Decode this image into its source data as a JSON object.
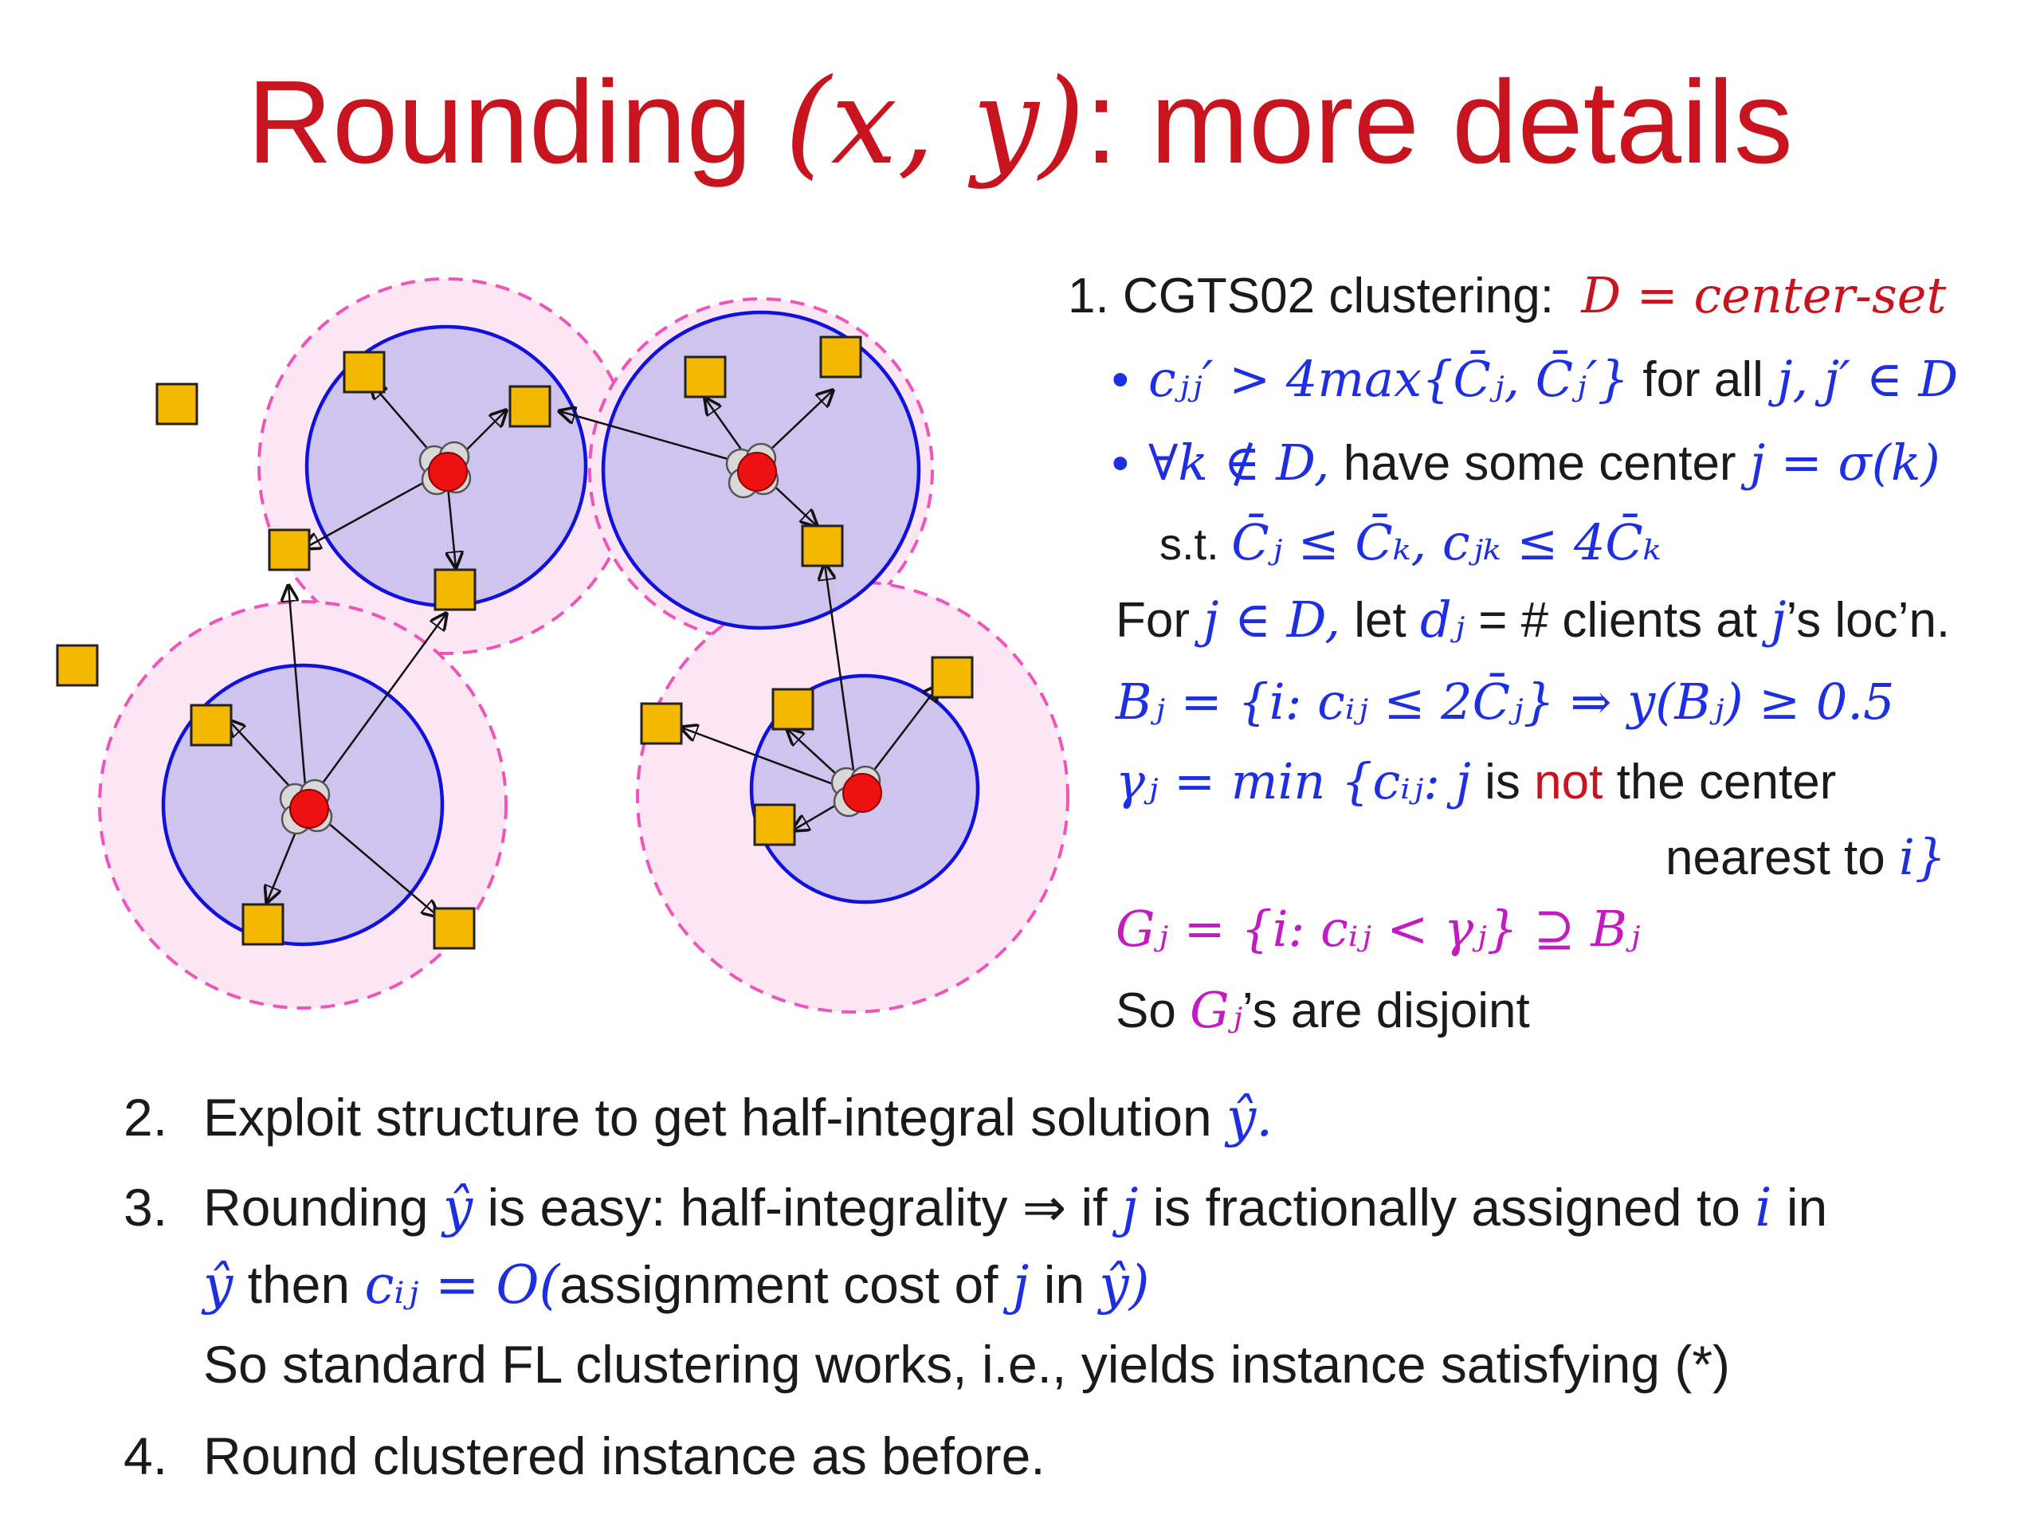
{
  "title": {
    "text": "Rounding ",
    "math": "(x, y)",
    "suffix": ": more details"
  },
  "colors": {
    "title": "#c8141e",
    "math_blue": "#1d2fe0",
    "magenta": "#c21bc2",
    "facility": "#f5b800",
    "center": "#ee1111",
    "inner_fill": "#cfc4ee",
    "inner_stroke": "#1111dd",
    "outer_fill": "#fde6f3",
    "outer_stroke": "#ee55bb"
  },
  "diagram": {
    "facility_icon": "yellow-square-icon",
    "client_icon": "red-dot-icon",
    "arrow_icon": "arrow-icon"
  },
  "step1": {
    "heading": "1. CGTS02 clustering:",
    "heading_math": "D = center-set",
    "b1_math": "cⱼⱼ′ > 4max{C̄ⱼ, C̄ⱼ′}",
    "b1_text": "for all",
    "b1_tail": "j, j′ ∈ D",
    "b2_math": "∀k ∉ D,",
    "b2_text": "have some center",
    "b2_tail": "j = σ(k)",
    "b3_text": "s.t.",
    "b3_math": "C̄ⱼ ≤ C̄ₖ,    cⱼₖ ≤ 4C̄ₖ"
  },
  "defs": {
    "for_pre": "For",
    "for_math": "j ∈ D,",
    "for_mid": "let",
    "for_math2": "dⱼ",
    "for_post": "= # clients at",
    "for_j": "j",
    "for_end": "’s loc’n.",
    "B_math": "Bⱼ = {i: cᵢⱼ ≤ 2C̄ⱼ} ⇒ y(Bⱼ) ≥ 0.5",
    "gamma_math": "γⱼ = min {cᵢⱼ: j",
    "gamma_is": "is",
    "gamma_not": "not",
    "gamma_post": "the center",
    "gamma_line2": "nearest to",
    "gamma_i": "i}",
    "G_math": "Gⱼ = {i: cᵢⱼ < γⱼ} ⊇ Bⱼ",
    "so_pre": "So",
    "so_math": "Gⱼ",
    "so_post": "’s are disjoint"
  },
  "steps": {
    "s2_num": "2.",
    "s2_text": "Exploit structure to get half-integral solution",
    "s2_math": "ŷ.",
    "s3_num": "3.",
    "s3_a": "Rounding",
    "s3_yhat": "ŷ",
    "s3_b": "is easy: half-integrality ⇒ if",
    "s3_j": "j",
    "s3_c": "is fractionally assigned to",
    "s3_i": "i",
    "s3_d": "in",
    "s3_line2_a": "ŷ",
    "s3_line2_b": "then",
    "s3_line2_math": "cᵢⱼ = O(",
    "s3_line2_c": "assignment cost of",
    "s3_line2_j": "j",
    "s3_line2_d": "in",
    "s3_line2_end": "ŷ)",
    "s3_line3": "So standard FL clustering works, i.e., yields instance satisfying (*)",
    "s4_num": "4.",
    "s4_text": "Round clustered instance as before."
  }
}
